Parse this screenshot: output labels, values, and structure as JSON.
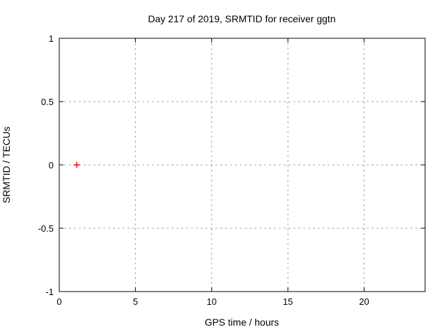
{
  "chart_data": {
    "type": "scatter",
    "title": "Day 217 of 2019, SRMTID for receiver ggtn",
    "xlabel": "GPS time / hours",
    "ylabel": "SRMTID / TECUs",
    "xlim": [
      0,
      24
    ],
    "ylim": [
      -1,
      1
    ],
    "xticks": [
      0,
      5,
      10,
      15,
      20
    ],
    "yticks": [
      -1,
      -0.5,
      0,
      0.5,
      1
    ],
    "grid": true,
    "legend": "none",
    "series": [
      {
        "name": "SRMTID",
        "marker": "plus",
        "color": "#ff0000",
        "points": [
          {
            "x": 1.15,
            "y": 0.0
          }
        ]
      }
    ],
    "style": {
      "border_color": "#000000",
      "grid_color": "#a6a6a6",
      "background": "#ffffff"
    }
  }
}
